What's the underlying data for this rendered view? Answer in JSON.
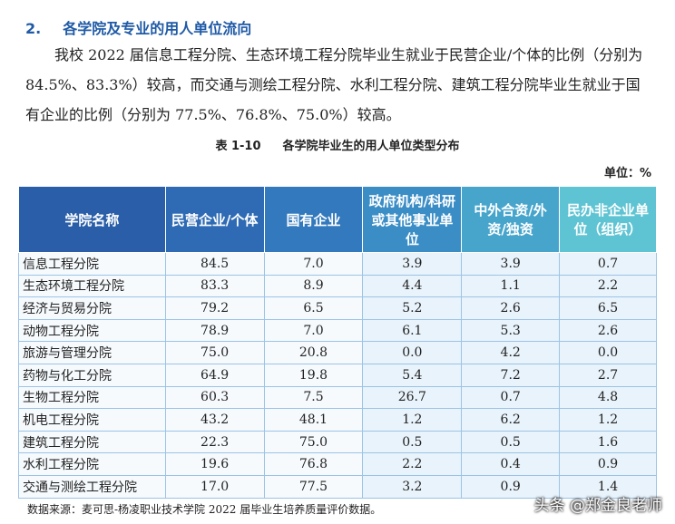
{
  "heading": {
    "number": "2.",
    "title": "各学院及专业的用人单位流向"
  },
  "paragraph": "我校 2022 届信息工程分院、生态环境工程分院毕业生就业于民营企业/个体的比例（分别为 84.5%、83.3%）较高，而交通与测绘工程分院、水利工程分院、建筑工程分院毕业生就业于国有企业的比例（分别为 77.5%、76.8%、75.0%）较高。",
  "caption": {
    "label": "表 1-10",
    "title": "各学院毕业生的用人单位类型分布"
  },
  "unit": "单位：%",
  "table": {
    "header": [
      "学院名称",
      "民营企业/个体",
      "国有企业",
      "政府机构/科研或其他事业单位",
      "中外合资/外资/独资",
      "民办非企业单位（组织）"
    ],
    "rows": [
      [
        "信息工程分院",
        "84.5",
        "7.0",
        "3.9",
        "3.9",
        "0.7"
      ],
      [
        "生态环境工程分院",
        "83.3",
        "8.9",
        "4.4",
        "1.1",
        "2.2"
      ],
      [
        "经济与贸易分院",
        "79.2",
        "6.5",
        "5.2",
        "2.6",
        "6.5"
      ],
      [
        "动物工程分院",
        "78.9",
        "7.0",
        "6.1",
        "5.3",
        "2.6"
      ],
      [
        "旅游与管理分院",
        "75.0",
        "20.8",
        "0.0",
        "4.2",
        "0.0"
      ],
      [
        "药物与化工分院",
        "64.9",
        "19.8",
        "5.4",
        "7.2",
        "2.7"
      ],
      [
        "生物工程分院",
        "60.3",
        "7.5",
        "26.7",
        "0.7",
        "4.8"
      ],
      [
        "机电工程分院",
        "43.2",
        "48.1",
        "1.2",
        "6.2",
        "1.2"
      ],
      [
        "建筑工程分院",
        "22.3",
        "75.0",
        "0.5",
        "0.5",
        "1.6"
      ],
      [
        "水利工程分院",
        "19.6",
        "76.8",
        "2.2",
        "0.4",
        "0.9"
      ],
      [
        "交通与测绘工程分院",
        "17.0",
        "77.5",
        "3.2",
        "0.9",
        "1.4"
      ]
    ]
  },
  "source": "数据来源：麦可思-杨凌职业技术学院 2022 届毕业生培养质量评价数据。",
  "watermark": "头条 @郑金良老师"
}
